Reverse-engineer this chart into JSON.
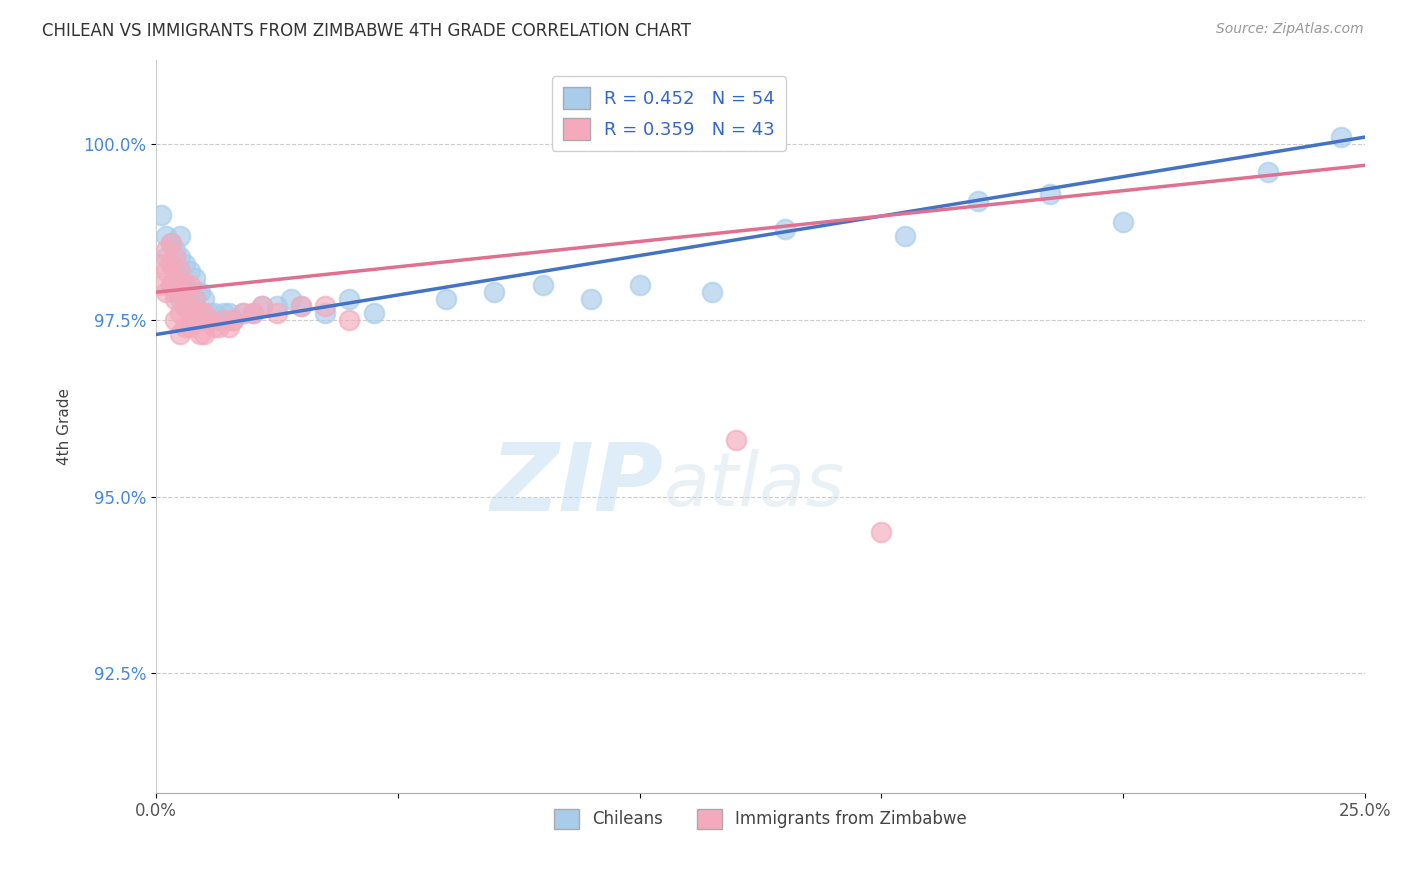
{
  "title": "CHILEAN VS IMMIGRANTS FROM ZIMBABWE 4TH GRADE CORRELATION CHART",
  "source_text": "Source: ZipAtlas.com",
  "ylabel": "4th Grade",
  "xlim": [
    0.0,
    0.25
  ],
  "ylim": [
    0.908,
    1.012
  ],
  "xticks": [
    0.0,
    0.05,
    0.1,
    0.15,
    0.2,
    0.25
  ],
  "xtick_labels": [
    "0.0%",
    "",
    "",
    "",
    "",
    "25.0%"
  ],
  "yticks": [
    0.925,
    0.95,
    0.975,
    1.0
  ],
  "ytick_labels": [
    "92.5%",
    "95.0%",
    "97.5%",
    "100.0%"
  ],
  "blue_R": 0.452,
  "blue_N": 54,
  "pink_R": 0.359,
  "pink_N": 43,
  "blue_color": "#A8CCEA",
  "pink_color": "#F4AABC",
  "blue_line_color": "#4472C4",
  "pink_line_color": "#E07090",
  "legend_label_blue": "Chileans",
  "legend_label_pink": "Immigrants from Zimbabwe",
  "watermark_zip": "ZIP",
  "watermark_atlas": "atlas",
  "blue_scatter_x": [
    0.001,
    0.002,
    0.002,
    0.003,
    0.003,
    0.003,
    0.004,
    0.004,
    0.004,
    0.005,
    0.005,
    0.005,
    0.005,
    0.006,
    0.006,
    0.006,
    0.007,
    0.007,
    0.007,
    0.008,
    0.008,
    0.008,
    0.009,
    0.009,
    0.01,
    0.01,
    0.011,
    0.012,
    0.013,
    0.014,
    0.015,
    0.016,
    0.018,
    0.02,
    0.022,
    0.025,
    0.028,
    0.03,
    0.035,
    0.04,
    0.045,
    0.06,
    0.07,
    0.08,
    0.09,
    0.1,
    0.115,
    0.13,
    0.155,
    0.17,
    0.185,
    0.2,
    0.23,
    0.245
  ],
  "blue_scatter_y": [
    0.99,
    0.987,
    0.984,
    0.986,
    0.983,
    0.98,
    0.985,
    0.982,
    0.979,
    0.987,
    0.984,
    0.981,
    0.978,
    0.983,
    0.98,
    0.977,
    0.982,
    0.979,
    0.976,
    0.981,
    0.978,
    0.975,
    0.979,
    0.976,
    0.978,
    0.975,
    0.976,
    0.976,
    0.975,
    0.976,
    0.976,
    0.975,
    0.976,
    0.976,
    0.977,
    0.977,
    0.978,
    0.977,
    0.976,
    0.978,
    0.976,
    0.978,
    0.979,
    0.98,
    0.978,
    0.98,
    0.979,
    0.988,
    0.987,
    0.992,
    0.993,
    0.989,
    0.996,
    1.001
  ],
  "pink_scatter_x": [
    0.001,
    0.001,
    0.002,
    0.002,
    0.002,
    0.003,
    0.003,
    0.003,
    0.004,
    0.004,
    0.004,
    0.004,
    0.005,
    0.005,
    0.005,
    0.005,
    0.006,
    0.006,
    0.006,
    0.007,
    0.007,
    0.007,
    0.008,
    0.008,
    0.009,
    0.009,
    0.01,
    0.01,
    0.011,
    0.012,
    0.013,
    0.014,
    0.015,
    0.016,
    0.018,
    0.02,
    0.022,
    0.025,
    0.03,
    0.035,
    0.04,
    0.12,
    0.15
  ],
  "pink_scatter_y": [
    0.983,
    0.98,
    0.985,
    0.982,
    0.979,
    0.986,
    0.983,
    0.98,
    0.984,
    0.981,
    0.978,
    0.975,
    0.982,
    0.979,
    0.976,
    0.973,
    0.98,
    0.977,
    0.974,
    0.98,
    0.977,
    0.974,
    0.978,
    0.975,
    0.976,
    0.973,
    0.976,
    0.973,
    0.975,
    0.974,
    0.974,
    0.975,
    0.974,
    0.975,
    0.976,
    0.976,
    0.977,
    0.976,
    0.977,
    0.977,
    0.975,
    0.958,
    0.945
  ]
}
